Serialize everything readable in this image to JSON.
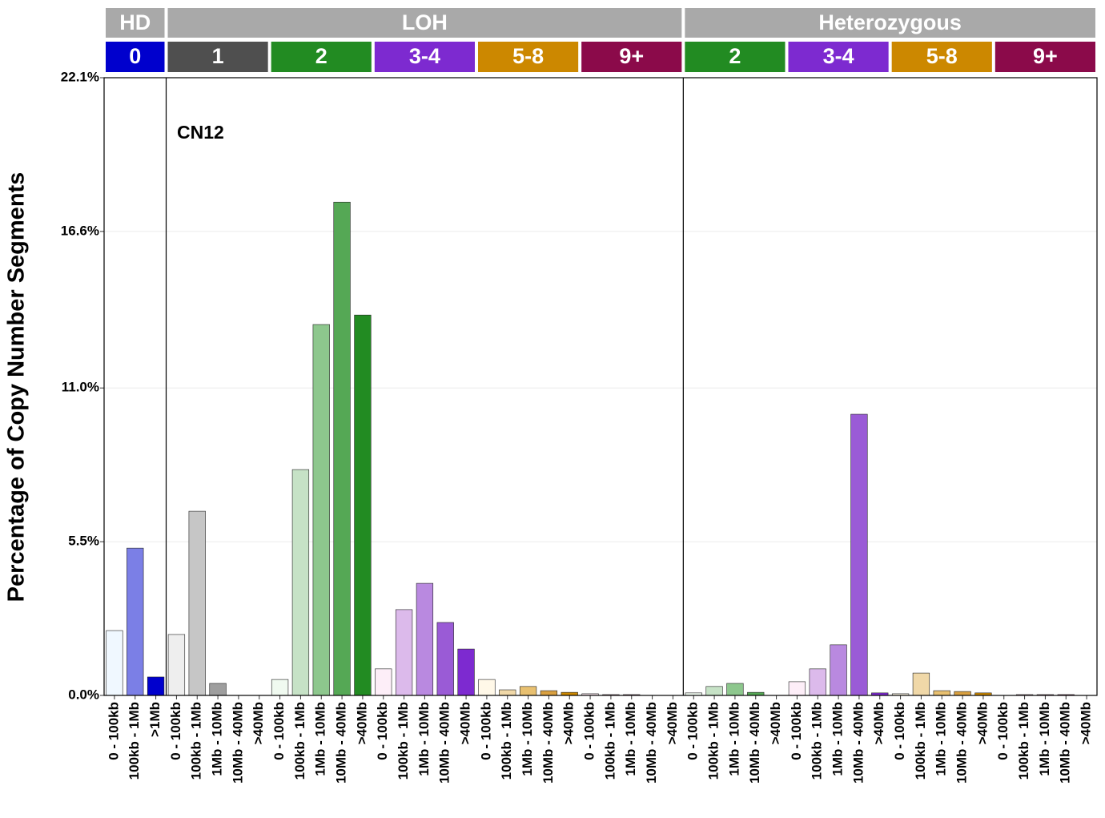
{
  "chart_data": {
    "type": "bar",
    "ylabel": "Percentage of Copy Number Segments",
    "annotation": "CN12",
    "ylim": [
      0,
      22.1
    ],
    "yticks": [
      {
        "value": 0,
        "label": "0.0%"
      },
      {
        "value": 5.5,
        "label": "5.5%"
      },
      {
        "value": 11.0,
        "label": "11.0%"
      },
      {
        "value": 16.6,
        "label": "16.6%"
      },
      {
        "value": 22.1,
        "label": "22.1%"
      }
    ],
    "grid": true,
    "groups": [
      {
        "name": "HD",
        "classes": [
          {
            "name": "0",
            "color": "#0000cd",
            "categories": [
              "0 - 100kb",
              "100kb - 1Mb",
              ">1Mb"
            ],
            "values": [
              2.32,
              5.27,
              0.66
            ],
            "colors": [
              "#f0f8ff",
              "#7b7fe6",
              "#0000cd"
            ]
          }
        ]
      },
      {
        "name": "LOH",
        "classes": [
          {
            "name": "1",
            "color": "#4f4f4f",
            "categories": [
              "0 - 100kb",
              "100kb - 1Mb",
              "1Mb - 10Mb",
              "10Mb - 40Mb",
              ">40Mb"
            ],
            "values": [
              2.18,
              6.59,
              0.43,
              0,
              0
            ],
            "colors": [
              "#eeeeee",
              "#c6c6c6",
              "#9e9e9e",
              "#777777",
              "#4f4f4f"
            ]
          },
          {
            "name": "2",
            "color": "#228b22",
            "categories": [
              "0 - 100kb",
              "100kb - 1Mb",
              "1Mb - 10Mb",
              "10Mb - 40Mb",
              ">40Mb"
            ],
            "values": [
              0.57,
              8.08,
              13.27,
              17.65,
              13.61
            ],
            "colors": [
              "#f0faf0",
              "#c6e2c6",
              "#8dc78d",
              "#55a855",
              "#228b22"
            ]
          },
          {
            "name": "3-4",
            "color": "#7d2ad0",
            "categories": [
              "0 - 100kb",
              "100kb - 1Mb",
              "1Mb - 10Mb",
              "10Mb - 40Mb",
              ">40Mb"
            ],
            "values": [
              0.95,
              3.07,
              4.01,
              2.61,
              1.66
            ],
            "colors": [
              "#fdeef8",
              "#dcbaeb",
              "#b989e0",
              "#9a5bd6",
              "#7d2ad0"
            ]
          },
          {
            "name": "5-8",
            "color": "#cc8800",
            "categories": [
              "0 - 100kb",
              "100kb - 1Mb",
              "1Mb - 10Mb",
              "10Mb - 40Mb",
              ">40Mb"
            ],
            "values": [
              0.57,
              0.2,
              0.32,
              0.17,
              0.11
            ],
            "colors": [
              "#fff8e8",
              "#f0d8a8",
              "#e8c070",
              "#d9a040",
              "#cc8800"
            ]
          },
          {
            "name": "9+",
            "color": "#8b0a4a",
            "categories": [
              "0 - 100kb",
              "100kb - 1Mb",
              "1Mb - 10Mb",
              "10Mb - 40Mb",
              ">40Mb"
            ],
            "values": [
              0.06,
              0.03,
              0.03,
              0,
              0
            ],
            "colors": [
              "#fbe8ef",
              "#d6a0b6",
              "#b96888",
              "#a03a62",
              "#8b0a4a"
            ]
          }
        ]
      },
      {
        "name": "Heterozygous",
        "classes": [
          {
            "name": "2",
            "color": "#228b22",
            "categories": [
              "0 - 100kb",
              "100kb - 1Mb",
              "1Mb - 10Mb",
              "10Mb - 40Mb",
              ">40Mb"
            ],
            "values": [
              0.09,
              0.32,
              0.43,
              0.11,
              0
            ],
            "colors": [
              "#f0faf0",
              "#c6e2c6",
              "#8dc78d",
              "#55a855",
              "#228b22"
            ]
          },
          {
            "name": "3-4",
            "color": "#7d2ad0",
            "categories": [
              "0 - 100kb",
              "100kb - 1Mb",
              "1Mb - 10Mb",
              "10Mb - 40Mb",
              ">40Mb"
            ],
            "values": [
              0.49,
              0.95,
              1.81,
              10.06,
              0.09
            ],
            "colors": [
              "#fdeef8",
              "#dcbaeb",
              "#b989e0",
              "#9a5bd6",
              "#7d2ad0"
            ]
          },
          {
            "name": "5-8",
            "color": "#cc8800",
            "categories": [
              "0 - 100kb",
              "100kb - 1Mb",
              "1Mb - 10Mb",
              "10Mb - 40Mb",
              ">40Mb"
            ],
            "values": [
              0.06,
              0.8,
              0.17,
              0.14,
              0.09
            ],
            "colors": [
              "#fff8e8",
              "#f0d8a8",
              "#e8c070",
              "#d9a040",
              "#cc8800"
            ]
          },
          {
            "name": "9+",
            "color": "#8b0a4a",
            "categories": [
              "0 - 100kb",
              "100kb - 1Mb",
              "1Mb - 10Mb",
              "10Mb - 40Mb",
              ">40Mb"
            ],
            "values": [
              0,
              0.03,
              0.03,
              0.03,
              0
            ],
            "colors": [
              "#fbe8ef",
              "#d6a0b6",
              "#b96888",
              "#a03a62",
              "#8b0a4a"
            ]
          }
        ]
      }
    ]
  }
}
